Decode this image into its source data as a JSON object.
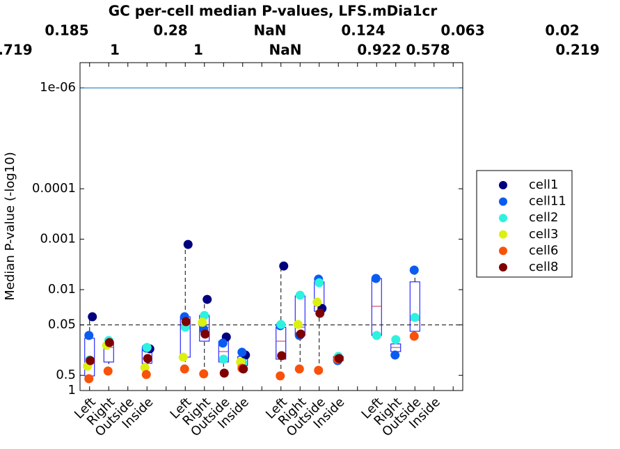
{
  "chart_data": {
    "type": "box-strip",
    "title": "GC per-cell median P-values, LFS.mDia1cr",
    "annotations": [
      [
        "0.185",
        "0.28",
        "NaN",
        "0.124",
        "0.063",
        "0.02"
      ],
      [
        ".719",
        "1",
        "1",
        "NaN",
        "0.922",
        "0.578",
        "0.219"
      ]
    ],
    "y_label": "Median P-value (-log10)",
    "log_scale": true,
    "reversed_log": true,
    "ylim": [
      1,
      3.162e-07
    ],
    "yticks": [
      {
        "value": 1e-06,
        "label": "1e-06"
      },
      0.0001,
      0.001,
      0.01,
      0.05,
      0.5,
      1
    ],
    "categories": [
      "Left",
      "Right",
      "Outside",
      "Inside",
      null,
      "Left",
      "Right",
      "Outside",
      "Inside",
      null,
      "Left",
      "Right",
      "Outside",
      "Inside",
      null,
      "Left",
      "Right",
      "Outside",
      "Inside",
      null
    ],
    "reference_lines": [
      {
        "value": 1e-06,
        "style": "solid",
        "color": "#0072bd"
      },
      {
        "value": 0.05,
        "style": "dashed",
        "color": "#000000"
      }
    ],
    "box_color": "#0000ff",
    "median_color": "#c0304a",
    "boxes": [
      [
        0.583,
        0.513,
        0.232,
        0.092,
        0.0345
      ],
      [
        0.411,
        0.272,
        0.14,
        0.112,
        0.102
      ],
      null,
      [
        0.482,
        0.29,
        0.232,
        0.154,
        0.14
      ],
      null,
      [
        0.374,
        0.218,
        0.0556,
        0.0345,
        0.00127
      ],
      [
        0.467,
        0.105,
        0.0556,
        0.0324,
        0.0156
      ],
      [
        0.467,
        0.272,
        0.169,
        0.105,
        0.087
      ],
      [
        0.374,
        0.319,
        0.272,
        0.211,
        0.174
      ],
      null,
      [
        0.513,
        0.239,
        0.105,
        0.0556,
        0.0034
      ],
      [
        0.374,
        0.081,
        0.0556,
        0.0133,
        0.0129
      ],
      [
        0.398,
        0.0268,
        0.0214,
        0.007,
        0.0062
      ],
      [
        0.255,
        0.255,
        0.239,
        0.211,
        0.211
      ],
      null,
      [
        0.081,
        0.081,
        0.0214,
        0.006,
        0.006
      ],
      [
        0.198,
        0.169,
        0.14,
        0.119,
        0.098
      ],
      [
        0.084,
        0.067,
        0.0404,
        0.007,
        0.0041
      ],
      null,
      null
    ],
    "series": [
      {
        "name": "cell1",
        "color": "#00007f",
        "values": [
          0.0345,
          null,
          null,
          0.149,
          null,
          0.00127,
          0.0156,
          0.087,
          0.198,
          null,
          0.0034,
          null,
          0.0236,
          null,
          null,
          null,
          null,
          null,
          null,
          null
        ]
      },
      {
        "name": "cell11",
        "color": "#0a5cf0",
        "values": [
          0.081,
          null,
          null,
          0.144,
          null,
          0.0345,
          0.061,
          0.115,
          0.174,
          null,
          0.052,
          0.081,
          0.0062,
          0.255,
          null,
          0.006,
          0.198,
          0.0041,
          null,
          null
        ]
      },
      {
        "name": "cell2",
        "color": "#2ef2e0",
        "values": [
          0.247,
          0.102,
          null,
          0.14,
          null,
          0.0556,
          0.0324,
          0.239,
          0.281,
          null,
          0.049,
          0.0129,
          0.0073,
          0.211,
          null,
          0.081,
          0.098,
          0.0356,
          null,
          null
        ]
      },
      {
        "name": "cell3",
        "color": "#dcf011",
        "values": [
          0.329,
          0.127,
          null,
          0.351,
          null,
          0.218,
          0.0445,
          null,
          0.272,
          null,
          null,
          0.049,
          0.0177,
          null,
          null,
          null,
          null,
          null,
          null,
          null
        ]
      },
      {
        "name": "cell6",
        "color": "#f8520a",
        "values": [
          0.583,
          0.411,
          null,
          0.482,
          null,
          0.374,
          0.467,
          null,
          0.362,
          null,
          0.513,
          0.374,
          0.398,
          0.239,
          null,
          null,
          null,
          0.084,
          null,
          null
        ]
      },
      {
        "name": "cell8",
        "color": "#7f0000",
        "values": [
          0.255,
          0.112,
          null,
          0.232,
          null,
          0.0431,
          0.076,
          0.452,
          0.374,
          null,
          0.204,
          0.076,
          0.0294,
          0.232,
          null,
          null,
          null,
          null,
          null,
          null
        ]
      }
    ]
  }
}
